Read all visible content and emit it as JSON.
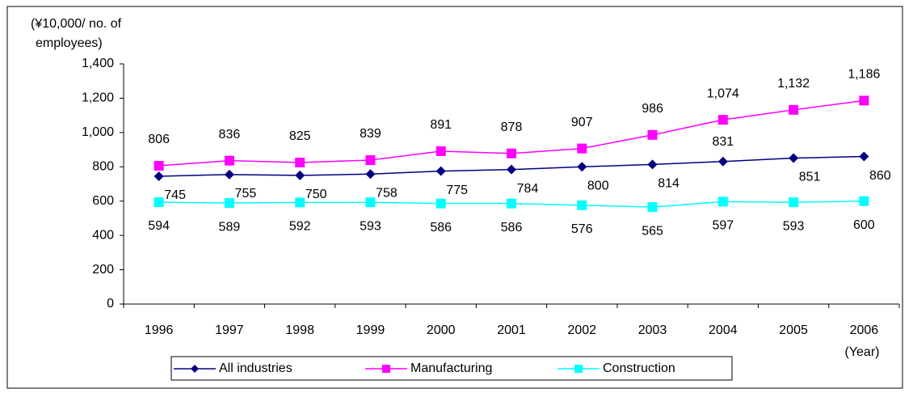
{
  "chart_data": {
    "type": "line",
    "y_label_lines": [
      "(¥10,000/ no. of",
      "employees)"
    ],
    "x_label": "(Year)",
    "categories": [
      "1996",
      "1997",
      "1998",
      "1999",
      "2000",
      "2001",
      "2002",
      "2003",
      "2004",
      "2005",
      "2006"
    ],
    "series": [
      {
        "name": "All industries",
        "color": "#000080",
        "marker": "diamond",
        "values": [
          745,
          755,
          750,
          758,
          775,
          784,
          800,
          814,
          831,
          851,
          860
        ]
      },
      {
        "name": "Manufacturing",
        "color": "#FF00FF",
        "marker": "square",
        "values": [
          806,
          836,
          825,
          839,
          891,
          878,
          907,
          986,
          1074,
          1132,
          1186
        ],
        "value_labels": [
          "806",
          "836",
          "825",
          "839",
          "891",
          "878",
          "907",
          "986",
          "1,074",
          "1,132",
          "1,186"
        ]
      },
      {
        "name": "Construction",
        "color": "#00FFFF",
        "marker": "square",
        "values": [
          594,
          589,
          592,
          593,
          586,
          586,
          576,
          565,
          597,
          593,
          600
        ]
      }
    ],
    "ylim": [
      0,
      1400
    ],
    "yticks": [
      0,
      200,
      400,
      600,
      800,
      {
        "value": 1000,
        "label": "1,000"
      },
      {
        "value": 1200,
        "label": "1,200"
      },
      {
        "value": 1400,
        "label": "1,400"
      }
    ],
    "grid": false,
    "legend": "bottom"
  }
}
